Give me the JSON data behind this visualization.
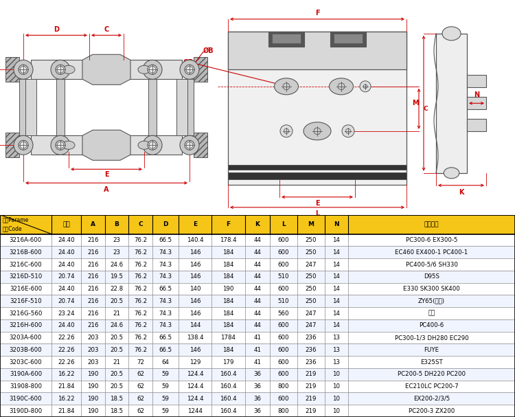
{
  "rows": [
    [
      "3216A-600",
      "24.40",
      "216",
      "23",
      "76.2",
      "66.5",
      "140.4",
      "178.4",
      "44",
      "600",
      "250",
      "14",
      "PC300-6 EX300-5"
    ],
    [
      "3216B-600",
      "24.40",
      "216",
      "23",
      "76.2",
      "74.3",
      "146",
      "184",
      "44",
      "600",
      "250",
      "14",
      "EC460 EX400-1 PC400-1"
    ],
    [
      "3216C-600",
      "24.40",
      "216",
      "24.6",
      "76.2",
      "74.3",
      "146",
      "184",
      "44",
      "600",
      "247",
      "14",
      "PC400-5/6 SH330"
    ],
    [
      "3216D-510",
      "20.74",
      "216",
      "19.5",
      "76.2",
      "74.3",
      "146",
      "184",
      "44",
      "510",
      "250",
      "14",
      "D95S"
    ],
    [
      "3216E-600",
      "24.40",
      "216",
      "22.8",
      "76.2",
      "66.5",
      "140",
      "190",
      "44",
      "600",
      "250",
      "14",
      "E330 SK300 SK400"
    ],
    [
      "3216F-510",
      "20.74",
      "216",
      "20.5",
      "76.2",
      "74.3",
      "146",
      "184",
      "44",
      "510",
      "250",
      "14",
      "ZY65(黄河)"
    ],
    [
      "3216G-560",
      "23.24",
      "216",
      "21",
      "76.2",
      "74.3",
      "146",
      "184",
      "44",
      "560",
      "247",
      "14",
      "长挖"
    ],
    [
      "3216H-600",
      "24.40",
      "216",
      "24.6",
      "76.2",
      "74.3",
      "144",
      "184",
      "44",
      "600",
      "247",
      "14",
      "PC400-6"
    ],
    [
      "3203A-600",
      "22.26",
      "203",
      "20.5",
      "76.2",
      "66.5",
      "138.4",
      "1784",
      "41",
      "600",
      "236",
      "13",
      "PC300-1/3 DH280 EC290"
    ],
    [
      "3203B-600",
      "22.26",
      "203",
      "20.5",
      "76.2",
      "66.5",
      "146",
      "184",
      "41",
      "600",
      "236",
      "13",
      "FUYE"
    ],
    [
      "3203C-600",
      "22.26",
      "203",
      "21",
      "72",
      "64",
      "129",
      "179",
      "41",
      "600",
      "236",
      "13",
      "E325ST"
    ],
    [
      "3190A-600",
      "16.22",
      "190",
      "20.5",
      "62",
      "59",
      "124.4",
      "160.4",
      "36",
      "600",
      "219",
      "10",
      "PC200-5 DH220 PC200"
    ],
    [
      "31908-800",
      "21.84",
      "190",
      "20.5",
      "62",
      "59",
      "124.4",
      "160.4",
      "36",
      "800",
      "219",
      "10",
      "EC210LC PC200-7"
    ],
    [
      "3190C-600",
      "16.22",
      "190",
      "18.5",
      "62",
      "59",
      "124.4",
      "160.4",
      "36",
      "600",
      "219",
      "10",
      "EX200-2/3/5"
    ],
    [
      "3190D-800",
      "21.84",
      "190",
      "18.5",
      "62",
      "59",
      "1244",
      "160.4",
      "36",
      "800",
      "219",
      "10",
      "PC200-3 ZX200"
    ]
  ],
  "header_bg": "#F5C518",
  "row_bg_odd": "#FFFFFF",
  "row_bg_even": "#F0F4FF",
  "red": "#CC0000",
  "lc": "#555555",
  "drawing_bg": "#FFFFFF"
}
